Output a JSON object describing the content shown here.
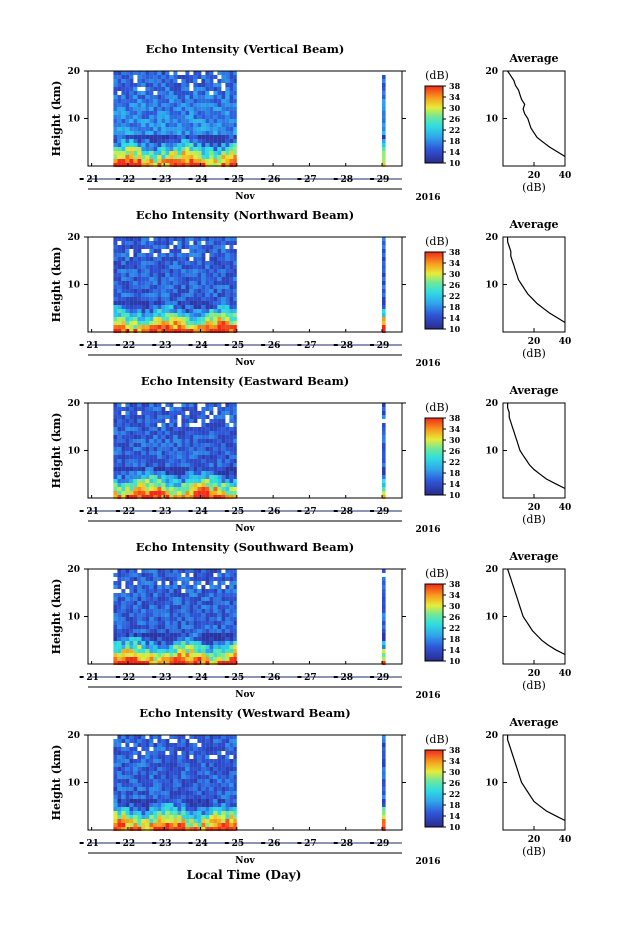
{
  "figure": {
    "x_axis_title": "Local Time (Day)",
    "year_label": "2016",
    "month_label": "Nov",
    "day_ticks": [
      "21",
      "22",
      "23",
      "24",
      "25",
      "26",
      "27",
      "28",
      "29"
    ],
    "height_axis_title": "Height (km)",
    "colorbar_unit": "(dB)",
    "colorbar_ticks": [
      "38",
      "34",
      "30",
      "26",
      "22",
      "18",
      "14",
      "10"
    ],
    "average_title": "Average",
    "average_xlabel": "(dB)"
  },
  "colors": {
    "low": "#2b2f8f",
    "mid": "#2fd0e0",
    "high": "#f02a1a"
  },
  "chart_data": [
    {
      "type": "heatmap",
      "title": "Echo Intensity (Vertical Beam)",
      "ylabel": "Height (km)",
      "ylim": [
        0,
        20
      ],
      "yticks": [
        "20",
        "10"
      ],
      "xlabel": "Nov",
      "x_ticks": [
        "21",
        "22",
        "23",
        "24",
        "25",
        "26",
        "27",
        "28",
        "29"
      ],
      "data_ranges": [
        [
          "21.6",
          "25.0"
        ],
        [
          "29.0",
          "29.1"
        ]
      ],
      "colorbar": {
        "label": "(dB)",
        "range": [
          10,
          38
        ]
      },
      "average": {
        "title": "Average",
        "xlabel": "(dB)",
        "xlim": [
          0,
          40
        ],
        "xticks": [
          "20",
          "40"
        ],
        "ylim": [
          0,
          20
        ],
        "height_km": [
          2,
          3,
          4,
          5,
          6,
          7,
          8,
          9,
          10,
          11,
          12,
          13,
          14,
          15,
          16,
          17,
          18,
          19,
          20
        ],
        "db": [
          40,
          35,
          30,
          26,
          22,
          20,
          18,
          17,
          16,
          14,
          13,
          14,
          12,
          11,
          10,
          8,
          7,
          5,
          3
        ]
      }
    },
    {
      "type": "heatmap",
      "title": "Echo Intensity (Northward Beam)",
      "ylabel": "Height (km)",
      "ylim": [
        0,
        20
      ],
      "yticks": [
        "20",
        "10"
      ],
      "xlabel": "Nov",
      "x_ticks": [
        "21",
        "22",
        "23",
        "24",
        "25",
        "26",
        "27",
        "28",
        "29"
      ],
      "data_ranges": [
        [
          "21.6",
          "25.0"
        ],
        [
          "29.0",
          "29.1"
        ]
      ],
      "colorbar": {
        "label": "(dB)",
        "range": [
          10,
          38
        ]
      },
      "average": {
        "title": "Average",
        "xlabel": "(dB)",
        "xlim": [
          0,
          40
        ],
        "xticks": [
          "20",
          "40"
        ],
        "ylim": [
          0,
          20
        ],
        "height_km": [
          2,
          3,
          4,
          5,
          6,
          7,
          8,
          9,
          10,
          11,
          12,
          13,
          14,
          15,
          16,
          17,
          18,
          19,
          20
        ],
        "db": [
          40,
          35,
          30,
          26,
          22,
          19,
          16,
          14,
          12,
          10,
          9,
          8,
          7,
          6,
          5,
          5,
          4,
          3,
          3
        ]
      }
    },
    {
      "type": "heatmap",
      "title": "Echo Intensity (Eastward Beam)",
      "ylabel": "Height (km)",
      "ylim": [
        0,
        20
      ],
      "yticks": [
        "20",
        "10"
      ],
      "xlabel": "Nov",
      "x_ticks": [
        "21",
        "22",
        "23",
        "24",
        "25",
        "26",
        "27",
        "28",
        "29"
      ],
      "data_ranges": [
        [
          "21.6",
          "25.0"
        ],
        [
          "29.0",
          "29.1"
        ]
      ],
      "colorbar": {
        "label": "(dB)",
        "range": [
          10,
          38
        ]
      },
      "average": {
        "title": "Average",
        "xlabel": "(dB)",
        "xlim": [
          0,
          40
        ],
        "xticks": [
          "20",
          "40"
        ],
        "ylim": [
          0,
          20
        ],
        "height_km": [
          2,
          3,
          4,
          5,
          6,
          7,
          8,
          9,
          10,
          11,
          12,
          13,
          14,
          15,
          16,
          17,
          18,
          19,
          20
        ],
        "db": [
          40,
          34,
          28,
          24,
          20,
          17,
          15,
          13,
          11,
          10,
          9,
          8,
          7,
          6,
          5,
          4,
          4,
          3,
          3
        ]
      }
    },
    {
      "type": "heatmap",
      "title": "Echo Intensity (Southward Beam)",
      "ylabel": "Height (km)",
      "ylim": [
        0,
        20
      ],
      "yticks": [
        "20",
        "10"
      ],
      "xlabel": "Nov",
      "x_ticks": [
        "21",
        "22",
        "23",
        "24",
        "25",
        "26",
        "27",
        "28",
        "29"
      ],
      "data_ranges": [
        [
          "21.6",
          "25.0"
        ],
        [
          "29.0",
          "29.1"
        ]
      ],
      "colorbar": {
        "label": "(dB)",
        "range": [
          10,
          38
        ]
      },
      "average": {
        "title": "Average",
        "xlabel": "(dB)",
        "xlim": [
          0,
          40
        ],
        "xticks": [
          "20",
          "40"
        ],
        "ylim": [
          0,
          20
        ],
        "height_km": [
          2,
          3,
          4,
          5,
          6,
          7,
          8,
          9,
          10,
          11,
          12,
          13,
          14,
          15,
          16,
          17,
          18,
          19,
          20
        ],
        "db": [
          40,
          34,
          29,
          25,
          22,
          19,
          17,
          15,
          13,
          12,
          11,
          10,
          9,
          8,
          7,
          6,
          5,
          4,
          3
        ]
      }
    },
    {
      "type": "heatmap",
      "title": "Echo Intensity (Westward Beam)",
      "ylabel": "Height (km)",
      "ylim": [
        0,
        20
      ],
      "yticks": [
        "20",
        "10"
      ],
      "xlabel": "Nov",
      "x_ticks": [
        "21",
        "22",
        "23",
        "24",
        "25",
        "26",
        "27",
        "28",
        "29"
      ],
      "data_ranges": [
        [
          "21.6",
          "25.0"
        ],
        [
          "29.0",
          "29.1"
        ]
      ],
      "colorbar": {
        "label": "(dB)",
        "range": [
          10,
          38
        ]
      },
      "average": {
        "title": "Average",
        "xlabel": "(dB)",
        "xlim": [
          0,
          40
        ],
        "xticks": [
          "20",
          "40"
        ],
        "ylim": [
          0,
          20
        ],
        "height_km": [
          2,
          3,
          4,
          5,
          6,
          7,
          8,
          9,
          10,
          11,
          12,
          13,
          14,
          15,
          16,
          17,
          18,
          19,
          20
        ],
        "db": [
          40,
          34,
          28,
          24,
          20,
          18,
          16,
          14,
          12,
          11,
          10,
          9,
          8,
          7,
          6,
          5,
          4,
          3,
          3
        ]
      }
    }
  ]
}
